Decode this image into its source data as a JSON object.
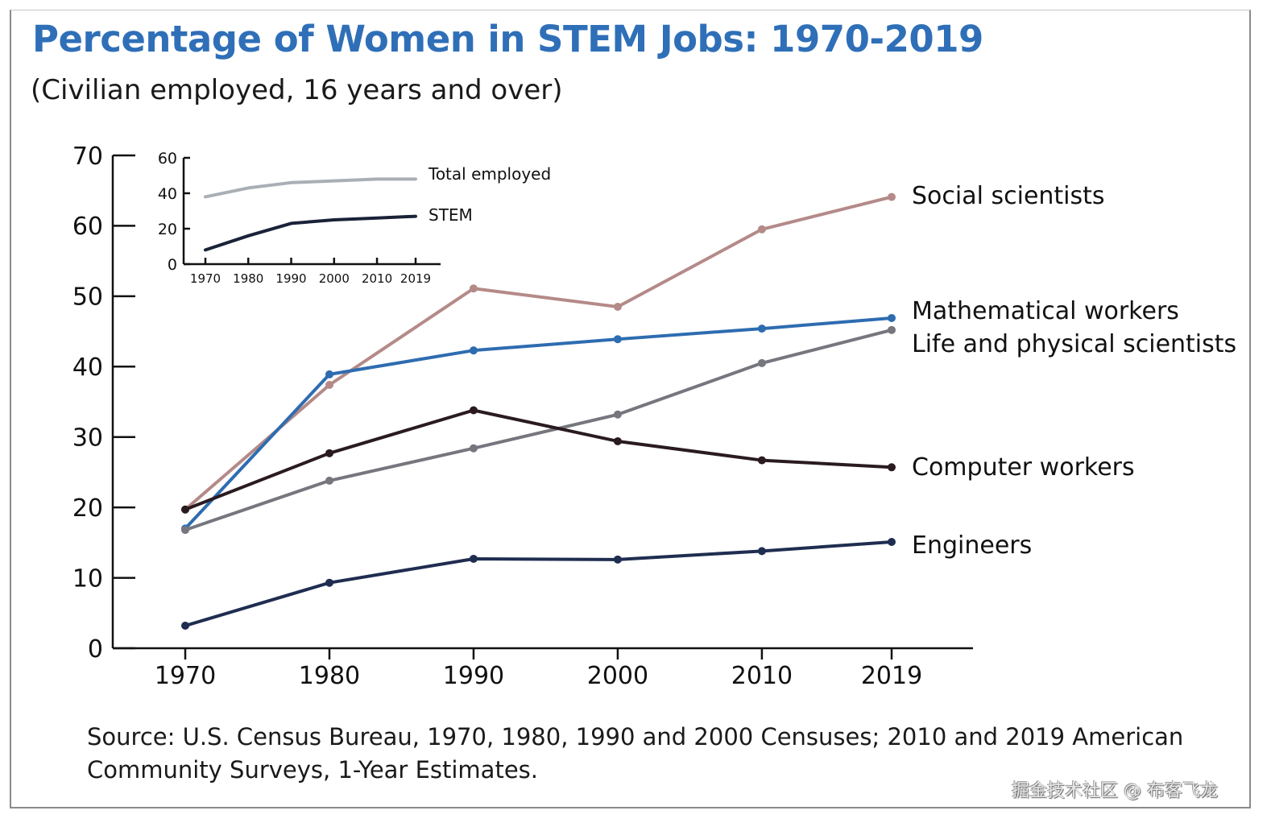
{
  "chart_data": [
    {
      "type": "line",
      "title": "Percentage of Women in STEM Jobs: 1970-2019",
      "subtitle": "(Civilian employed, 16 years and over)",
      "x": [
        1970,
        1980,
        1990,
        2000,
        2010,
        2019
      ],
      "xtick_labels": [
        "1970",
        "1980",
        "1990",
        "2000",
        "2010",
        "2019"
      ],
      "yticks": [
        0,
        10,
        20,
        30,
        40,
        50,
        60,
        70
      ],
      "ylim": [
        0,
        70
      ],
      "grid": false,
      "legend": "direct labels at right",
      "series": [
        {
          "name": "Social scientists",
          "color": "#b48a88",
          "values": [
            19.7,
            37.4,
            51.1,
            48.5,
            59.5,
            64.1
          ]
        },
        {
          "name": "Mathematical workers",
          "color": "#2e6cb0",
          "values": [
            17.0,
            38.9,
            42.3,
            43.9,
            45.4,
            46.9
          ]
        },
        {
          "name": "Life and physical scientists",
          "color": "#76767e",
          "values": [
            16.8,
            23.8,
            28.4,
            33.2,
            40.5,
            45.2
          ]
        },
        {
          "name": "Computer workers",
          "color": "#2a1b20",
          "values": [
            19.7,
            27.7,
            33.8,
            29.4,
            26.7,
            25.7
          ]
        },
        {
          "name": "Engineers",
          "color": "#1f2d50",
          "values": [
            3.2,
            9.3,
            12.7,
            12.6,
            13.8,
            15.1
          ]
        }
      ]
    },
    {
      "type": "line",
      "x": [
        1970,
        1980,
        1990,
        2000,
        2010,
        2019
      ],
      "xtick_labels": [
        "1970",
        "1980",
        "1990",
        "2000",
        "2010",
        "2019"
      ],
      "yticks": [
        0,
        20,
        40,
        60
      ],
      "ylim": [
        0,
        60
      ],
      "grid": false,
      "legend": "direct labels at right",
      "series": [
        {
          "name": "Total employed",
          "color": "#a9afb5",
          "values": [
            38,
            43,
            46,
            47,
            48,
            48
          ]
        },
        {
          "name": "STEM",
          "color": "#1a2238",
          "values": [
            8,
            16,
            23,
            25,
            26,
            27
          ]
        }
      ]
    }
  ],
  "source": "Source: U.S. Census Bureau, 1970, 1980, 1990 and 2000 Censuses; 2010 and 2019 American Community Surveys, 1-Year Estimates.",
  "watermark": "掘金技术社区 @ 布客飞龙"
}
